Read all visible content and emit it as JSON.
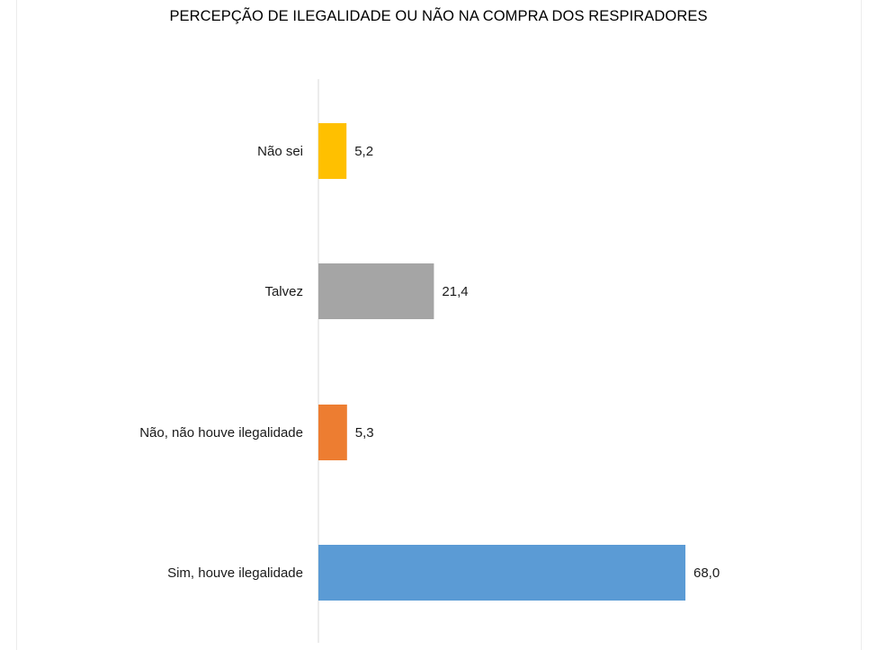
{
  "chart_data": {
    "type": "bar",
    "orientation": "horizontal",
    "title": "PERCEPÇÃO DE ILEGALIDADE OU NÃO NA COMPRA DOS RESPIRADORES",
    "categories": [
      "Não sei",
      "Talvez",
      "Não, não houve ilegalidade",
      "Sim, houve ilegalidade"
    ],
    "values": [
      5.2,
      21.4,
      5.3,
      68.0
    ],
    "value_labels": [
      "5,2",
      "21,4",
      "5,3",
      "68,0"
    ],
    "colors": [
      "#FFC000",
      "#A5A5A5",
      "#ED7D31",
      "#5B9BD5"
    ],
    "xlim": [
      0,
      80
    ],
    "grid": false,
    "legend": "none"
  }
}
